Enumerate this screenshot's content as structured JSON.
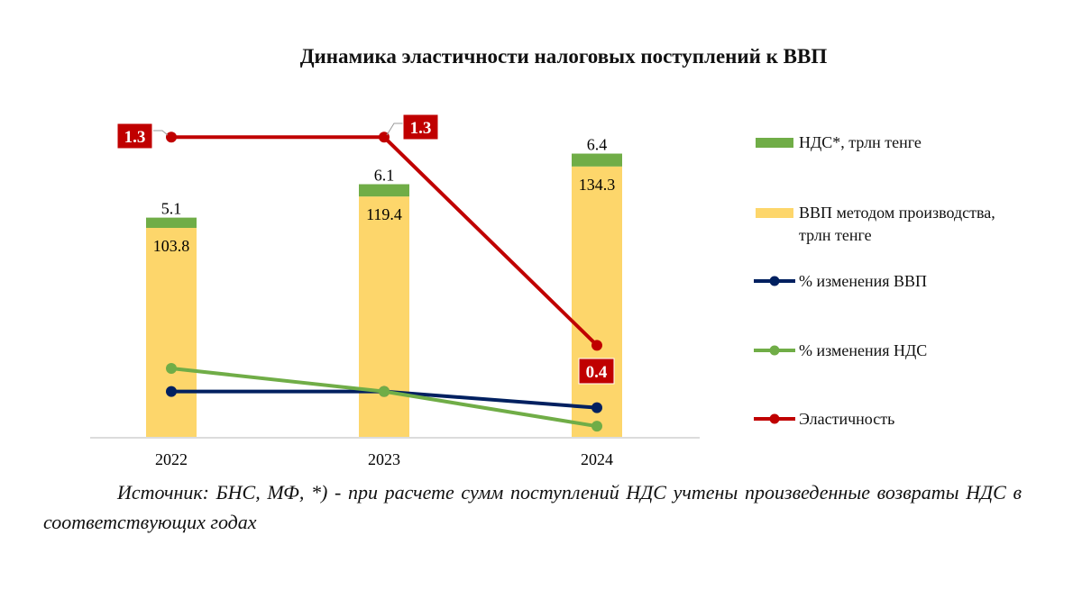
{
  "chart_data": {
    "type": "bar+line",
    "title": "Динамика эластичности налоговых поступлений к ВВП",
    "categories": [
      "2022",
      "2023",
      "2024"
    ],
    "stacked": true,
    "grid": false,
    "legend_position": "right",
    "series": [
      {
        "name": "ВВП методом производства, трлн тенге",
        "kind": "bar",
        "color": "#FDD66B",
        "values": [
          103.8,
          119.4,
          134.3
        ],
        "labels": [
          "103.8",
          "119.4",
          "134.3"
        ]
      },
      {
        "name": "НДС*, трлн тенге",
        "kind": "bar",
        "color": "#70AD47",
        "values": [
          5.1,
          6.1,
          6.4
        ],
        "labels": [
          "5.1",
          "6.1",
          "6.4"
        ]
      },
      {
        "name": "% изменения ВВП",
        "kind": "line",
        "axis": "secondary",
        "color": "#002060",
        "values": [
          20,
          20,
          13
        ]
      },
      {
        "name": "% изменения НДС",
        "kind": "line",
        "axis": "secondary",
        "color": "#70AD47",
        "values": [
          30,
          20,
          5
        ]
      },
      {
        "name": "Эластичность",
        "kind": "line",
        "axis": "secondary",
        "color": "#C00000",
        "values": [
          1.3,
          1.3,
          0.4
        ],
        "labels": [
          "1.3",
          "1.3",
          "0.4"
        ]
      }
    ]
  },
  "legend": {
    "vat": "НДС*, трлн тенге",
    "gdp_line1": "ВВП методом производства,",
    "gdp_line2": "трлн тенге",
    "gdp_pct": "% изменения ВВП",
    "vat_pct": "% изменения НДС",
    "elasticity": "Эластичность"
  },
  "note": "Источник: БНС, МФ, *) - при расчете сумм поступлений НДС учтены произведенные возвраты НДС в соответствующих годах"
}
